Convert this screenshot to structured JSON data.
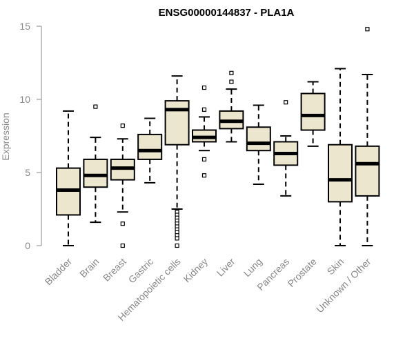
{
  "colors": {
    "box_fill": "#ede6cf",
    "box_stroke": "#000000",
    "axis": "#888888",
    "text_gray": "#888888"
  },
  "chart_data": {
    "type": "boxplot",
    "title": "ENSG00000144837 - PLA1A",
    "xlabel": "",
    "ylabel": "Expression",
    "ylim": [
      0,
      15
    ],
    "yticks": [
      0,
      5,
      10,
      15
    ],
    "categories": [
      "Bladder",
      "Brain",
      "Breast",
      "Gastric",
      "Hematopoietic cells",
      "Kidney",
      "Liver",
      "Lung",
      "Pancreas",
      "Prostate",
      "Skin",
      "Unknown / Other"
    ],
    "boxes": [
      {
        "min": 0.0,
        "q1": 2.1,
        "median": 3.8,
        "q3": 5.3,
        "max": 9.2,
        "outliers": []
      },
      {
        "min": 1.6,
        "q1": 4.0,
        "median": 4.8,
        "q3": 5.9,
        "max": 7.4,
        "outliers": [
          9.5
        ]
      },
      {
        "min": 2.3,
        "q1": 4.5,
        "median": 5.3,
        "q3": 5.9,
        "max": 7.3,
        "outliers": [
          8.2,
          1.5,
          0.0
        ]
      },
      {
        "min": 4.3,
        "q1": 5.9,
        "median": 6.5,
        "q3": 7.6,
        "max": 8.7,
        "outliers": []
      },
      {
        "min": 2.5,
        "q1": 6.9,
        "median": 9.3,
        "q3": 9.9,
        "max": 11.6,
        "outliers": [
          2.3,
          2.1,
          1.9,
          1.7,
          1.5,
          1.3,
          1.1,
          0.9,
          0.7,
          0.5,
          0.0
        ]
      },
      {
        "min": 6.5,
        "q1": 7.1,
        "median": 7.4,
        "q3": 7.9,
        "max": 8.8,
        "outliers": [
          10.8,
          9.3,
          5.9,
          4.8
        ]
      },
      {
        "min": 7.1,
        "q1": 8.0,
        "median": 8.5,
        "q3": 9.2,
        "max": 10.7,
        "outliers": [
          11.8,
          11.2
        ]
      },
      {
        "min": 4.2,
        "q1": 6.5,
        "median": 7.0,
        "q3": 8.1,
        "max": 9.6,
        "outliers": []
      },
      {
        "min": 3.4,
        "q1": 5.5,
        "median": 6.3,
        "q3": 7.1,
        "max": 7.5,
        "outliers": [
          9.8
        ]
      },
      {
        "min": 6.8,
        "q1": 7.9,
        "median": 8.9,
        "q3": 10.4,
        "max": 11.2,
        "outliers": []
      },
      {
        "min": 0.0,
        "q1": 3.0,
        "median": 4.5,
        "q3": 6.9,
        "max": 12.1,
        "outliers": []
      },
      {
        "min": 0.0,
        "q1": 3.4,
        "median": 5.6,
        "q3": 6.8,
        "max": 11.7,
        "outliers": [
          14.8
        ]
      }
    ]
  }
}
